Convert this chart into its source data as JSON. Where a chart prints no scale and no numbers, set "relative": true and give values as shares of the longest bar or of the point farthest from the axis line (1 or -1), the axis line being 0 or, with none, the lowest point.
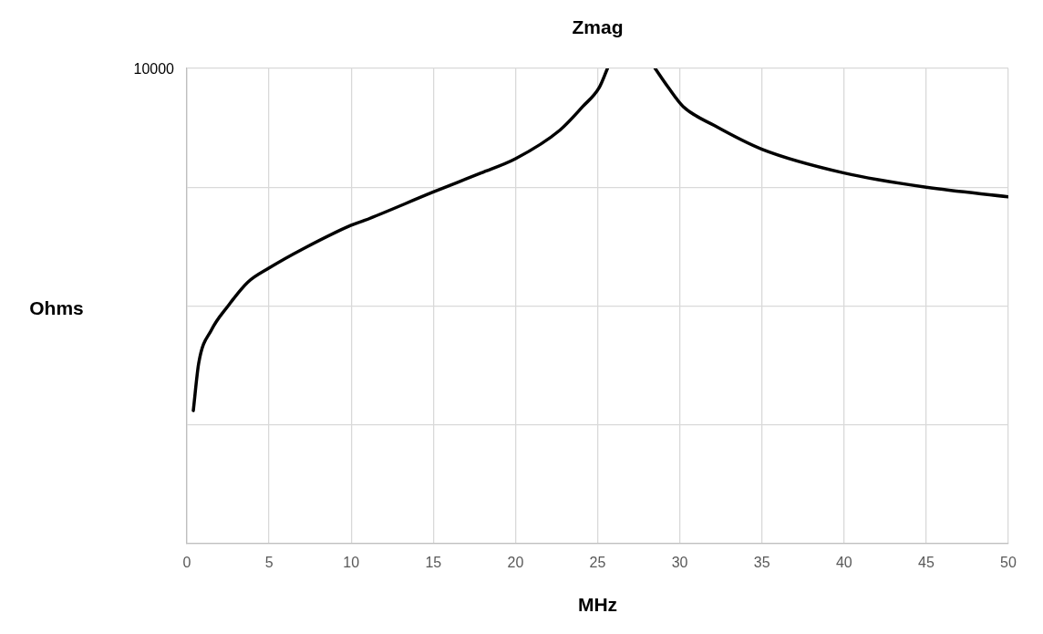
{
  "chart_data": {
    "type": "line",
    "title": "Zmag",
    "xlabel": "MHz",
    "relative": true,
    "annotations": [
      "10000",
      "Ohms"
    ],
    "x": [
      0.39,
      0.72,
      1.5,
      2.5,
      3.7,
      5,
      7.05,
      10,
      10.8,
      15,
      17.9,
      20,
      22.7,
      24.1,
      25.1,
      25.6,
      27,
      28.5,
      29.3,
      30.2,
      32.1,
      35,
      40,
      45,
      50
    ],
    "series": [
      {
        "color": "#000000",
        "values": [
          0.28,
          0.38,
          0.45,
          0.5,
          0.55,
          0.58,
          0.62,
          0.67,
          0.68,
          0.74,
          0.78,
          0.81,
          0.87,
          0.92,
          0.96,
          1,
          null,
          1,
          0.96,
          0.92,
          0.88,
          0.83,
          0.78,
          0.75,
          0.73
        ]
      }
    ],
    "xlim": [
      0,
      50
    ],
    "xticks": [
      0,
      5,
      10,
      15,
      20,
      25,
      30,
      35,
      40,
      45,
      50
    ],
    "grid": true,
    "legend": false,
    "line_style": "solid"
  }
}
